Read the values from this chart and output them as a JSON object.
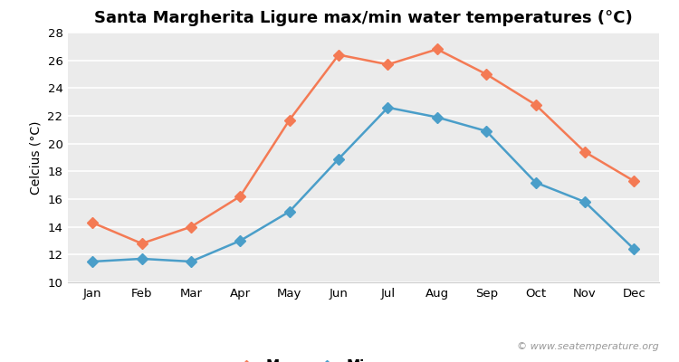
{
  "title": "Santa Margherita Ligure max/min water temperatures (°C)",
  "ylabel": "Celcius (°C)",
  "months": [
    "Jan",
    "Feb",
    "Mar",
    "Apr",
    "May",
    "Jun",
    "Jul",
    "Aug",
    "Sep",
    "Oct",
    "Nov",
    "Dec"
  ],
  "max_temps": [
    14.3,
    12.8,
    14.0,
    16.2,
    21.7,
    26.4,
    25.7,
    26.8,
    25.0,
    22.8,
    19.4,
    17.3
  ],
  "min_temps": [
    11.5,
    11.7,
    11.5,
    13.0,
    15.1,
    18.9,
    22.6,
    21.9,
    20.9,
    17.2,
    15.8,
    12.4
  ],
  "max_color": "#f47a54",
  "min_color": "#4a9ec9",
  "ylim": [
    10,
    28
  ],
  "yticks": [
    10,
    12,
    14,
    16,
    18,
    20,
    22,
    24,
    26,
    28
  ],
  "fig_bg_color": "#ffffff",
  "plot_bg_color": "#ebebeb",
  "legend_labels": [
    "Max",
    "Min"
  ],
  "watermark": "© www.seatemperature.org",
  "title_fontsize": 13,
  "label_fontsize": 10,
  "tick_fontsize": 9.5,
  "watermark_fontsize": 8,
  "marker": "D",
  "markersize": 6,
  "linewidth": 1.8,
  "grid_color": "#ffffff",
  "grid_linewidth": 1.2
}
